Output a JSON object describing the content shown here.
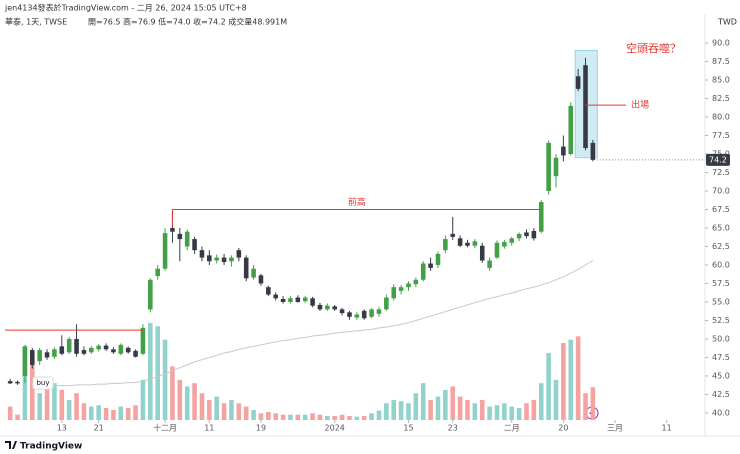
{
  "chart_data": {
    "type": "candlestick",
    "title": "jen4134發表於TradingView.com - 二月 26, 2024 15:05 UTC+8",
    "subtitle": "華泰, 1天, TWSE",
    "ohlc_text": "開=76.5 高=76.9 低=74.0 收=74.2 成交量48.991M",
    "currency": "TWD",
    "brand": "TradingView",
    "xlim": [
      -0.7,
      94.2
    ],
    "xticks": [
      {
        "value": 7,
        "label": "13"
      },
      {
        "value": 12,
        "label": "21"
      },
      {
        "value": 21,
        "label": "十二月"
      },
      {
        "value": 27,
        "label": "11"
      },
      {
        "value": 34,
        "label": "19"
      },
      {
        "value": 44,
        "label": "2024"
      },
      {
        "value": 54,
        "label": "15"
      },
      {
        "value": 60,
        "label": "23"
      },
      {
        "value": 68,
        "label": "二月"
      },
      {
        "value": 75,
        "label": "20"
      },
      {
        "value": 82,
        "label": "三月"
      },
      {
        "value": 89,
        "label": "11"
      }
    ],
    "ylim": [
      39.05,
      91.08
    ],
    "yticks": [
      {
        "value": 40,
        "label": "40.0"
      },
      {
        "value": 42.5,
        "label": "42.5"
      },
      {
        "value": 45,
        "label": "45.0"
      },
      {
        "value": 47.5,
        "label": "47.5"
      },
      {
        "value": 50,
        "label": "50.0"
      },
      {
        "value": 52.5,
        "label": "52.5"
      },
      {
        "value": 55,
        "label": "55.0"
      },
      {
        "value": 57.5,
        "label": "57.5"
      },
      {
        "value": 60,
        "label": "60.0"
      },
      {
        "value": 62.5,
        "label": "62.5"
      },
      {
        "value": 65,
        "label": "65.0"
      },
      {
        "value": 67.5,
        "label": "67.5"
      },
      {
        "value": 70,
        "label": "70.0"
      },
      {
        "value": 72.5,
        "label": "72.5"
      },
      {
        "value": 75,
        "label": "75.0"
      },
      {
        "value": 77.5,
        "label": "77.5"
      },
      {
        "value": 80,
        "label": "80.0"
      },
      {
        "value": 82.5,
        "label": "82.5"
      },
      {
        "value": 85,
        "label": "85.0"
      },
      {
        "value": 87.5,
        "label": "87.5"
      },
      {
        "value": 90,
        "label": "90.0"
      }
    ],
    "up_color": "#43a047",
    "down_color": "#363a45",
    "volume_up_color": "#92d2cc",
    "volume_down_color": "#f5a3a1",
    "ma_color": "#c8c8c8",
    "open": [
      44.3,
      44.2,
      45.0,
      48.5,
      47.0,
      48.2,
      47.6,
      49.0,
      48.2,
      50.0,
      48.5,
      48.2,
      48.6,
      49.1,
      48.6,
      48.0,
      48.8,
      48.4,
      48.0,
      54.0,
      58.5,
      59.5,
      65.0,
      64.2,
      62.5,
      63.5,
      62.0,
      61.3,
      60.6,
      61.0,
      60.5,
      62.0,
      61.0,
      58.3,
      58.6,
      57.0,
      56.0,
      55.4,
      55.0,
      55.6,
      55.1,
      55.5,
      54.6,
      54.0,
      54.4,
      54.0,
      53.6,
      52.9,
      53.8,
      53.0,
      53.4,
      54.0,
      55.5,
      56.5,
      57.0,
      57.4,
      58.0,
      60.2,
      60.0,
      62.0,
      64.2,
      63.6,
      63.0,
      62.6,
      62.6,
      59.6,
      61.0,
      62.5,
      63.0,
      63.6,
      64.4,
      64.6,
      64.5,
      70.0,
      72.0,
      76.0,
      75.0,
      85.5,
      87.0,
      76.5
    ],
    "high": [
      44.6,
      44.4,
      49.2,
      48.8,
      48.8,
      48.6,
      48.9,
      50.5,
      50.3,
      52.0,
      49.0,
      49.0,
      49.3,
      49.4,
      48.9,
      49.4,
      49.0,
      48.6,
      52.0,
      58.2,
      60.0,
      65.0,
      67.5,
      65.0,
      64.8,
      63.8,
      62.5,
      62.0,
      61.4,
      61.5,
      61.3,
      62.3,
      61.3,
      60.0,
      58.8,
      57.2,
      56.3,
      55.8,
      55.8,
      55.9,
      55.8,
      55.7,
      54.9,
      54.8,
      54.6,
      54.2,
      53.8,
      53.6,
      54.0,
      54.2,
      54.3,
      56.0,
      57.4,
      57.3,
      57.8,
      58.3,
      60.5,
      61.0,
      61.8,
      64.0,
      66.5,
      64.0,
      63.4,
      63.5,
      63.0,
      61.0,
      63.3,
      63.4,
      63.8,
      64.4,
      64.8,
      65.0,
      68.8,
      76.8,
      75.0,
      77.5,
      82.0,
      86.5,
      88.0,
      76.9
    ],
    "low": [
      43.9,
      43.8,
      44.0,
      46.0,
      46.5,
      47.2,
      47.3,
      47.8,
      48.0,
      47.6,
      47.8,
      48.0,
      48.3,
      48.4,
      48.0,
      47.8,
      48.0,
      47.5,
      47.8,
      53.6,
      58.0,
      59.2,
      63.0,
      60.5,
      62.0,
      61.5,
      60.5,
      60.0,
      60.2,
      60.0,
      59.8,
      60.5,
      57.8,
      58.0,
      57.2,
      55.8,
      55.2,
      54.8,
      54.8,
      54.9,
      54.9,
      54.3,
      53.8,
      53.8,
      53.8,
      53.2,
      52.6,
      52.6,
      52.6,
      52.8,
      53.0,
      53.8,
      55.2,
      56.0,
      56.5,
      57.0,
      57.8,
      59.2,
      59.6,
      61.6,
      63.4,
      62.4,
      62.4,
      62.3,
      60.3,
      59.2,
      60.8,
      62.2,
      62.6,
      63.2,
      63.6,
      63.3,
      64.3,
      69.5,
      70.5,
      74.0,
      74.8,
      83.5,
      75.5,
      74.0
    ],
    "close": [
      44.0,
      44.0,
      49.0,
      46.5,
      48.5,
      47.5,
      48.6,
      48.0,
      50.0,
      48.0,
      48.0,
      48.8,
      49.1,
      48.6,
      48.2,
      49.2,
      48.2,
      47.6,
      51.5,
      58.0,
      59.5,
      64.3,
      64.5,
      63.5,
      64.5,
      62.0,
      61.0,
      60.5,
      61.0,
      60.4,
      61.0,
      61.0,
      58.2,
      59.5,
      57.5,
      56.0,
      55.5,
      55.0,
      55.5,
      55.0,
      55.6,
      54.5,
      54.0,
      54.5,
      54.0,
      53.5,
      53.0,
      53.3,
      52.8,
      54.0,
      54.0,
      55.6,
      57.0,
      57.0,
      57.5,
      58.0,
      60.2,
      59.6,
      61.5,
      63.5,
      63.8,
      62.6,
      62.6,
      63.2,
      60.6,
      60.6,
      63.0,
      63.1,
      63.6,
      64.2,
      63.9,
      63.6,
      68.5,
      76.5,
      74.5,
      74.8,
      81.5,
      83.8,
      75.8,
      74.2
    ],
    "volume_ylim": [
      0,
      575
    ],
    "volume": [
      20,
      8,
      110,
      95,
      40,
      60,
      55,
      45,
      30,
      40,
      25,
      20,
      22,
      18,
      15,
      20,
      18,
      22,
      60,
      145,
      140,
      120,
      80,
      60,
      50,
      55,
      40,
      30,
      35,
      25,
      30,
      25,
      20,
      15,
      10,
      12,
      10,
      8,
      8,
      8,
      8,
      10,
      8,
      6,
      6,
      8,
      6,
      5,
      6,
      10,
      14,
      25,
      30,
      28,
      25,
      40,
      55,
      30,
      35,
      45,
      50,
      35,
      30,
      25,
      30,
      20,
      22,
      25,
      20,
      18,
      25,
      30,
      55,
      100,
      60,
      115,
      120,
      125,
      40,
      48.991
    ],
    "ma": [
      null,
      null,
      null,
      43.6,
      43.6,
      43.6,
      43.7,
      43.7,
      43.7,
      43.8,
      43.8,
      43.8,
      43.9,
      43.9,
      44.0,
      44.0,
      44.1,
      44.1,
      44.3,
      44.6,
      44.9,
      45.3,
      45.7,
      46.1,
      46.5,
      46.9,
      47.2,
      47.5,
      47.8,
      48.1,
      48.3,
      48.6,
      48.8,
      49.0,
      49.2,
      49.4,
      49.6,
      49.8,
      49.9,
      50.1,
      50.2,
      50.4,
      50.5,
      50.6,
      50.8,
      50.9,
      51.0,
      51.1,
      51.2,
      51.3,
      51.5,
      51.6,
      51.8,
      52.0,
      52.2,
      52.5,
      52.8,
      53.1,
      53.4,
      53.7,
      54.0,
      54.3,
      54.6,
      54.9,
      55.2,
      55.5,
      55.7,
      56.0,
      56.2,
      56.5,
      56.8,
      57.0,
      57.3,
      57.6,
      58.0,
      58.4,
      58.9,
      59.4,
      60.0,
      60.6
    ],
    "levels": [
      {
        "label": "前高",
        "value": 67.5
      },
      {
        "label": "出場",
        "value": 81.6
      },
      {
        "value": 51.2
      }
    ],
    "pattern_box": {
      "label": "空頭吞噬？",
      "ylim": [
        74.5,
        89
      ]
    },
    "buy_label": "buy",
    "annotation_color": "#e53935"
  }
}
